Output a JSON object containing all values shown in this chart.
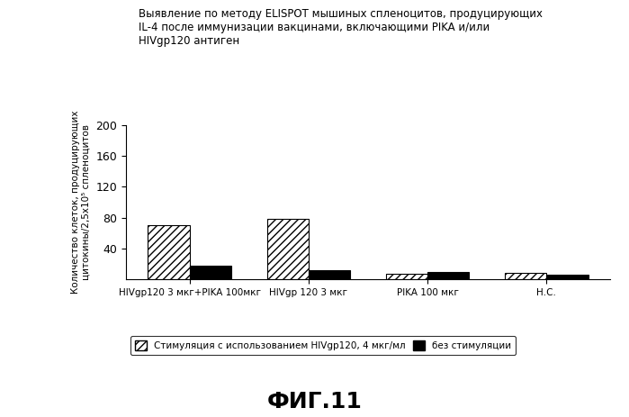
{
  "title_line1": "Выявление по методу ELISPOT мышиных спленоцитов, продуцирующих",
  "title_line2": "IL-4 после иммунизации вакцинами, включающими PIKA и/или",
  "title_line3": "HIVgp120 антиген",
  "ylabel_line1": "Количество клеток, продуцирующих",
  "ylabel_line2": "цитокины/2,5х10⁵ спленоцитов",
  "categories": [
    "HIVgp120 3 мкг+PIKA 100мкг",
    "HIVgp 120 3 мкг",
    "PIKA 100 мкг",
    "Н.С."
  ],
  "stimulated": [
    70,
    78,
    7,
    8
  ],
  "unstimulated": [
    18,
    12,
    10,
    6
  ],
  "ylim": [
    0,
    200
  ],
  "yticks": [
    40,
    80,
    120,
    160,
    200
  ],
  "legend_stimulated": "Стимуляция с использованием HIVgp120, 4 мкг/мл",
  "legend_unstimulated": "без стимуляции",
  "fig_label": "ФИГ.11",
  "hatch_pattern": "////",
  "stimulated_color": "white",
  "stimulated_edgecolor": "black",
  "unstimulated_color": "black",
  "bar_width": 0.35,
  "background_color": "white"
}
